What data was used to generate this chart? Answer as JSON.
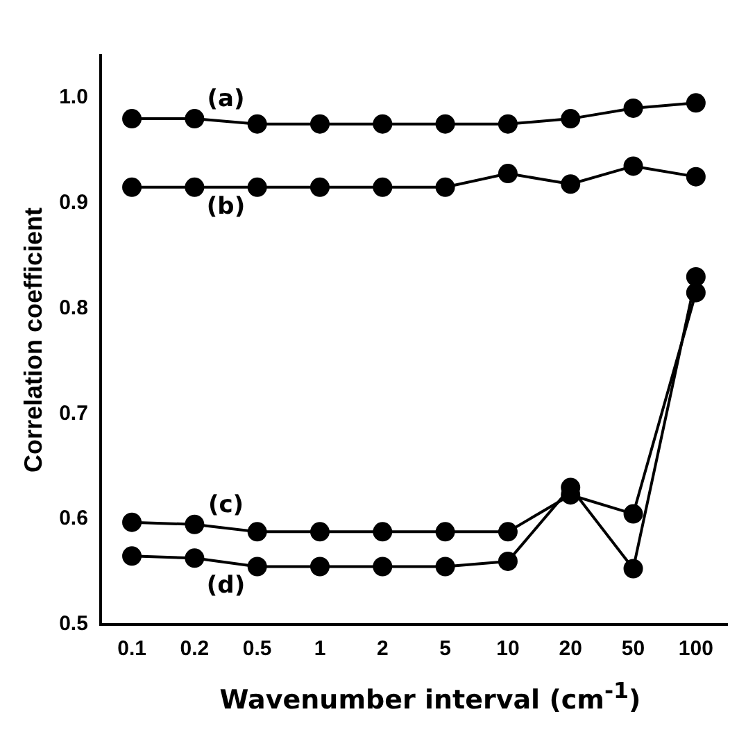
{
  "chart_data": {
    "type": "line",
    "categories": [
      "0.1",
      "0.2",
      "0.5",
      "1",
      "2",
      "5",
      "10",
      "20",
      "50",
      "100"
    ],
    "series": [
      {
        "name": "(a)",
        "color": "#000000",
        "values": [
          0.98,
          0.98,
          0.975,
          0.975,
          0.975,
          0.975,
          0.975,
          0.98,
          0.99,
          0.995
        ]
      },
      {
        "name": "(b)",
        "color": "#000000",
        "values": [
          0.915,
          0.915,
          0.915,
          0.915,
          0.915,
          0.915,
          0.928,
          0.918,
          0.935,
          0.925
        ]
      },
      {
        "name": "(c)",
        "color": "#000000",
        "values": [
          0.597,
          0.595,
          0.588,
          0.588,
          0.588,
          0.588,
          0.588,
          0.623,
          0.605,
          0.815
        ]
      },
      {
        "name": "(d)",
        "color": "#000000",
        "values": [
          0.565,
          0.563,
          0.555,
          0.555,
          0.555,
          0.555,
          0.56,
          0.63,
          0.553,
          0.83
        ]
      }
    ],
    "xlabel": "Wavenumber interval (cm$^{-1}$)",
    "ylabel": "Correlation coefficient",
    "ylim": [
      0.5,
      1.04
    ],
    "yticks": [
      0.5,
      0.6,
      0.7,
      0.8,
      0.9,
      {
        "value": 1,
        "label": "1.0"
      }
    ],
    "grid": false,
    "legend": false,
    "marker": "circle",
    "line_style": "solid"
  }
}
